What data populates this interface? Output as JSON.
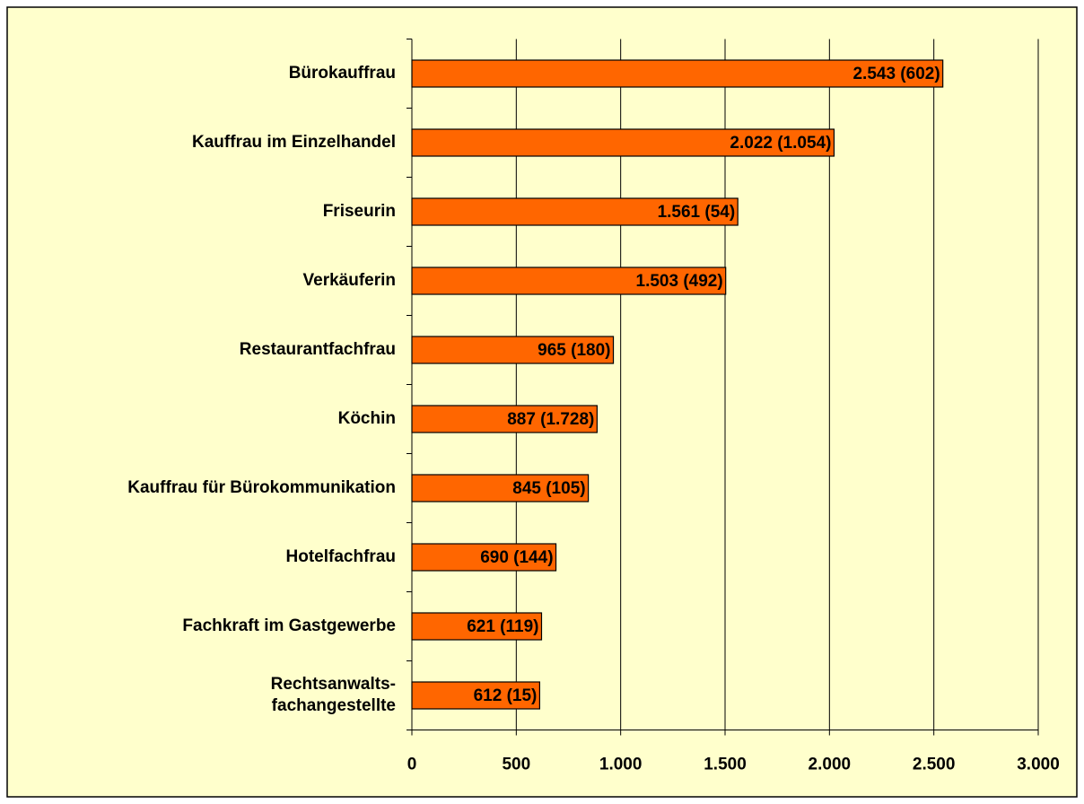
{
  "chart_data": {
    "type": "barh",
    "categories": [
      "Bürokauffrau",
      "Kauffrau im Einzelhandel",
      "Friseurin",
      "Verkäuferin",
      "Restaurantfachfrau",
      "Köchin",
      "Kauffrau für Bürokommunikation",
      "Hotelfachfrau",
      "Fachkraft im Gastgewerbe",
      "Rechtsanwalts-\nfachangestellte"
    ],
    "values": [
      2543,
      2022,
      1561,
      1503,
      965,
      887,
      845,
      690,
      621,
      612
    ],
    "value_labels": [
      "2.543 (602)",
      "2.022 (1.054)",
      "1.561 (54)",
      "1.503 (492)",
      "965 (180)",
      "887 (1.728)",
      "845 (105)",
      "690 (144)",
      "621 (119)",
      "612 (15)"
    ],
    "color": "#ff6600",
    "xlim": [
      0,
      3000
    ],
    "xticks": [
      0,
      500,
      {
        "value": 1000,
        "label": "1.000"
      },
      {
        "value": 1500,
        "label": "1.500"
      },
      {
        "value": 2000,
        "label": "2.000"
      },
      {
        "value": 2500,
        "label": "2.500"
      },
      {
        "value": 3000,
        "label": "3.000"
      }
    ],
    "grid": true
  }
}
